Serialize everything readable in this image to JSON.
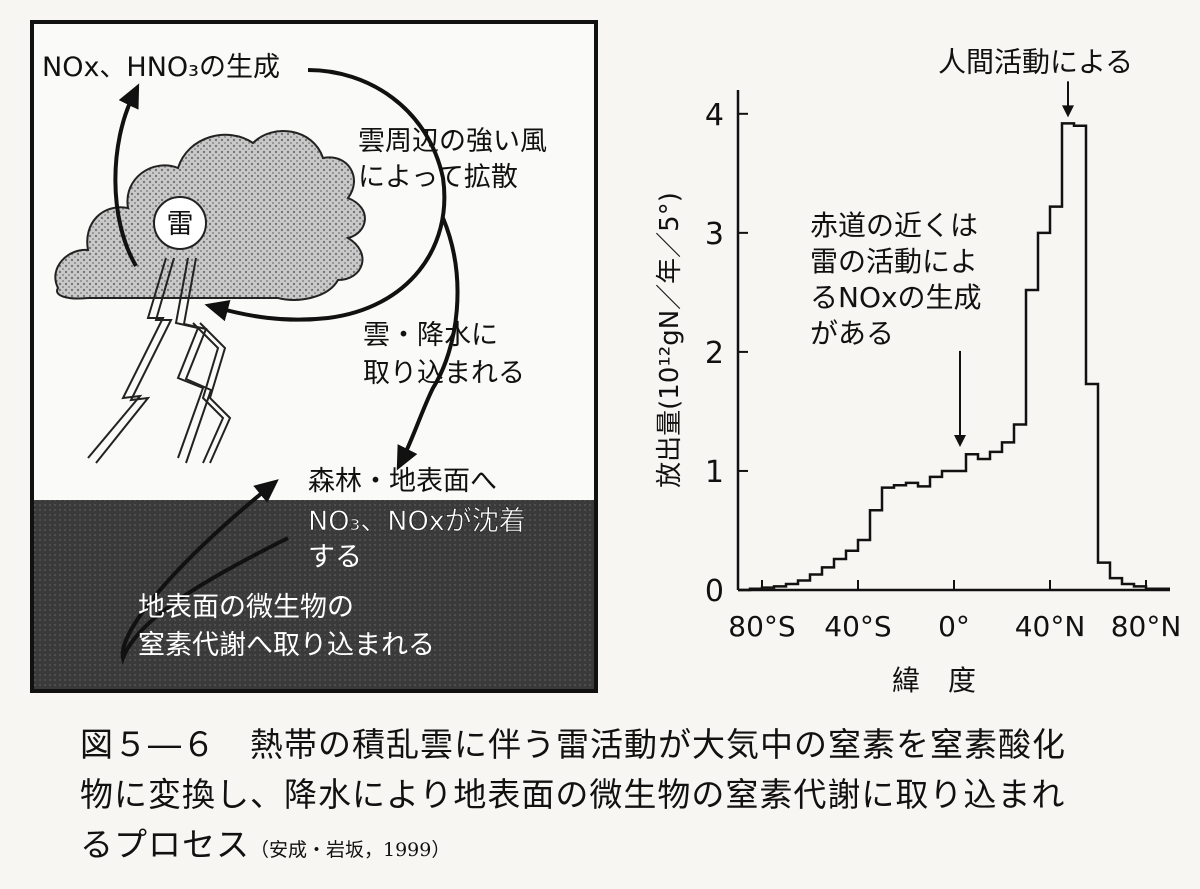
{
  "diagram": {
    "top_label": "NOx、HNO₃の生成",
    "thunder_label": "雷",
    "diffuse_label": [
      "雲周辺の強い風",
      "によって拡散"
    ],
    "precip_label": [
      "雲・降水に",
      "取り込まれる"
    ],
    "deposit_label": [
      "森林・地表面へ",
      "NO₃、NOxが沈着",
      "する"
    ],
    "microbe_label": [
      "地表面の微生物の",
      "窒素代謝へ取り込まれる"
    ]
  },
  "chart_data": {
    "type": "line",
    "step": true,
    "xlabel": "緯　度",
    "ylabel": "放出量(10¹²gN／年／5°)",
    "x_ticks": [
      "80°S",
      "40°S",
      "0°",
      "40°N",
      "80°N"
    ],
    "x_tick_values": [
      -80,
      -40,
      0,
      40,
      80
    ],
    "y_ticks": [
      "0",
      "1",
      "2",
      "3",
      "4"
    ],
    "ylim": [
      0,
      4.2
    ],
    "xlim": [
      -90,
      90
    ],
    "series": [
      {
        "x": [
          -90,
          -85,
          -80,
          -75,
          -70,
          -65,
          -60,
          -55,
          -50,
          -45,
          -40,
          -35,
          -30,
          -25,
          -20,
          -15,
          -10,
          -5,
          0,
          5,
          10,
          15,
          20,
          25,
          30,
          35,
          40,
          45,
          50,
          55,
          60,
          65,
          70,
          75,
          80,
          85
        ],
        "values": [
          0.0,
          0.01,
          0.02,
          0.03,
          0.05,
          0.08,
          0.13,
          0.19,
          0.26,
          0.33,
          0.42,
          0.67,
          0.86,
          0.88,
          0.9,
          0.87,
          0.95,
          1.0,
          1.0,
          1.14,
          1.1,
          1.16,
          1.24,
          1.39,
          2.52,
          3.0,
          3.22,
          3.92,
          3.9,
          1.73,
          0.23,
          0.1,
          0.05,
          0.03,
          0.01,
          0.01
        ]
      }
    ],
    "annotations": [
      {
        "text": "人間活動による",
        "x": 47.5,
        "y": 3.92
      },
      {
        "text": [
          "赤道の近くは",
          "雷の活動によ",
          "るNOxの生成",
          "がある"
        ],
        "x": 2.5,
        "y": 1.0
      }
    ]
  },
  "caption": {
    "lines": [
      "図５―６　熱帯の積乱雲に伴う雷活動が大気中の窒素を窒素酸化",
      "物に変換し、降水により地表面の微生物の窒素代謝に取り込まれ",
      "るプロセス"
    ],
    "citation": "（安成・岩坂，1999）"
  }
}
